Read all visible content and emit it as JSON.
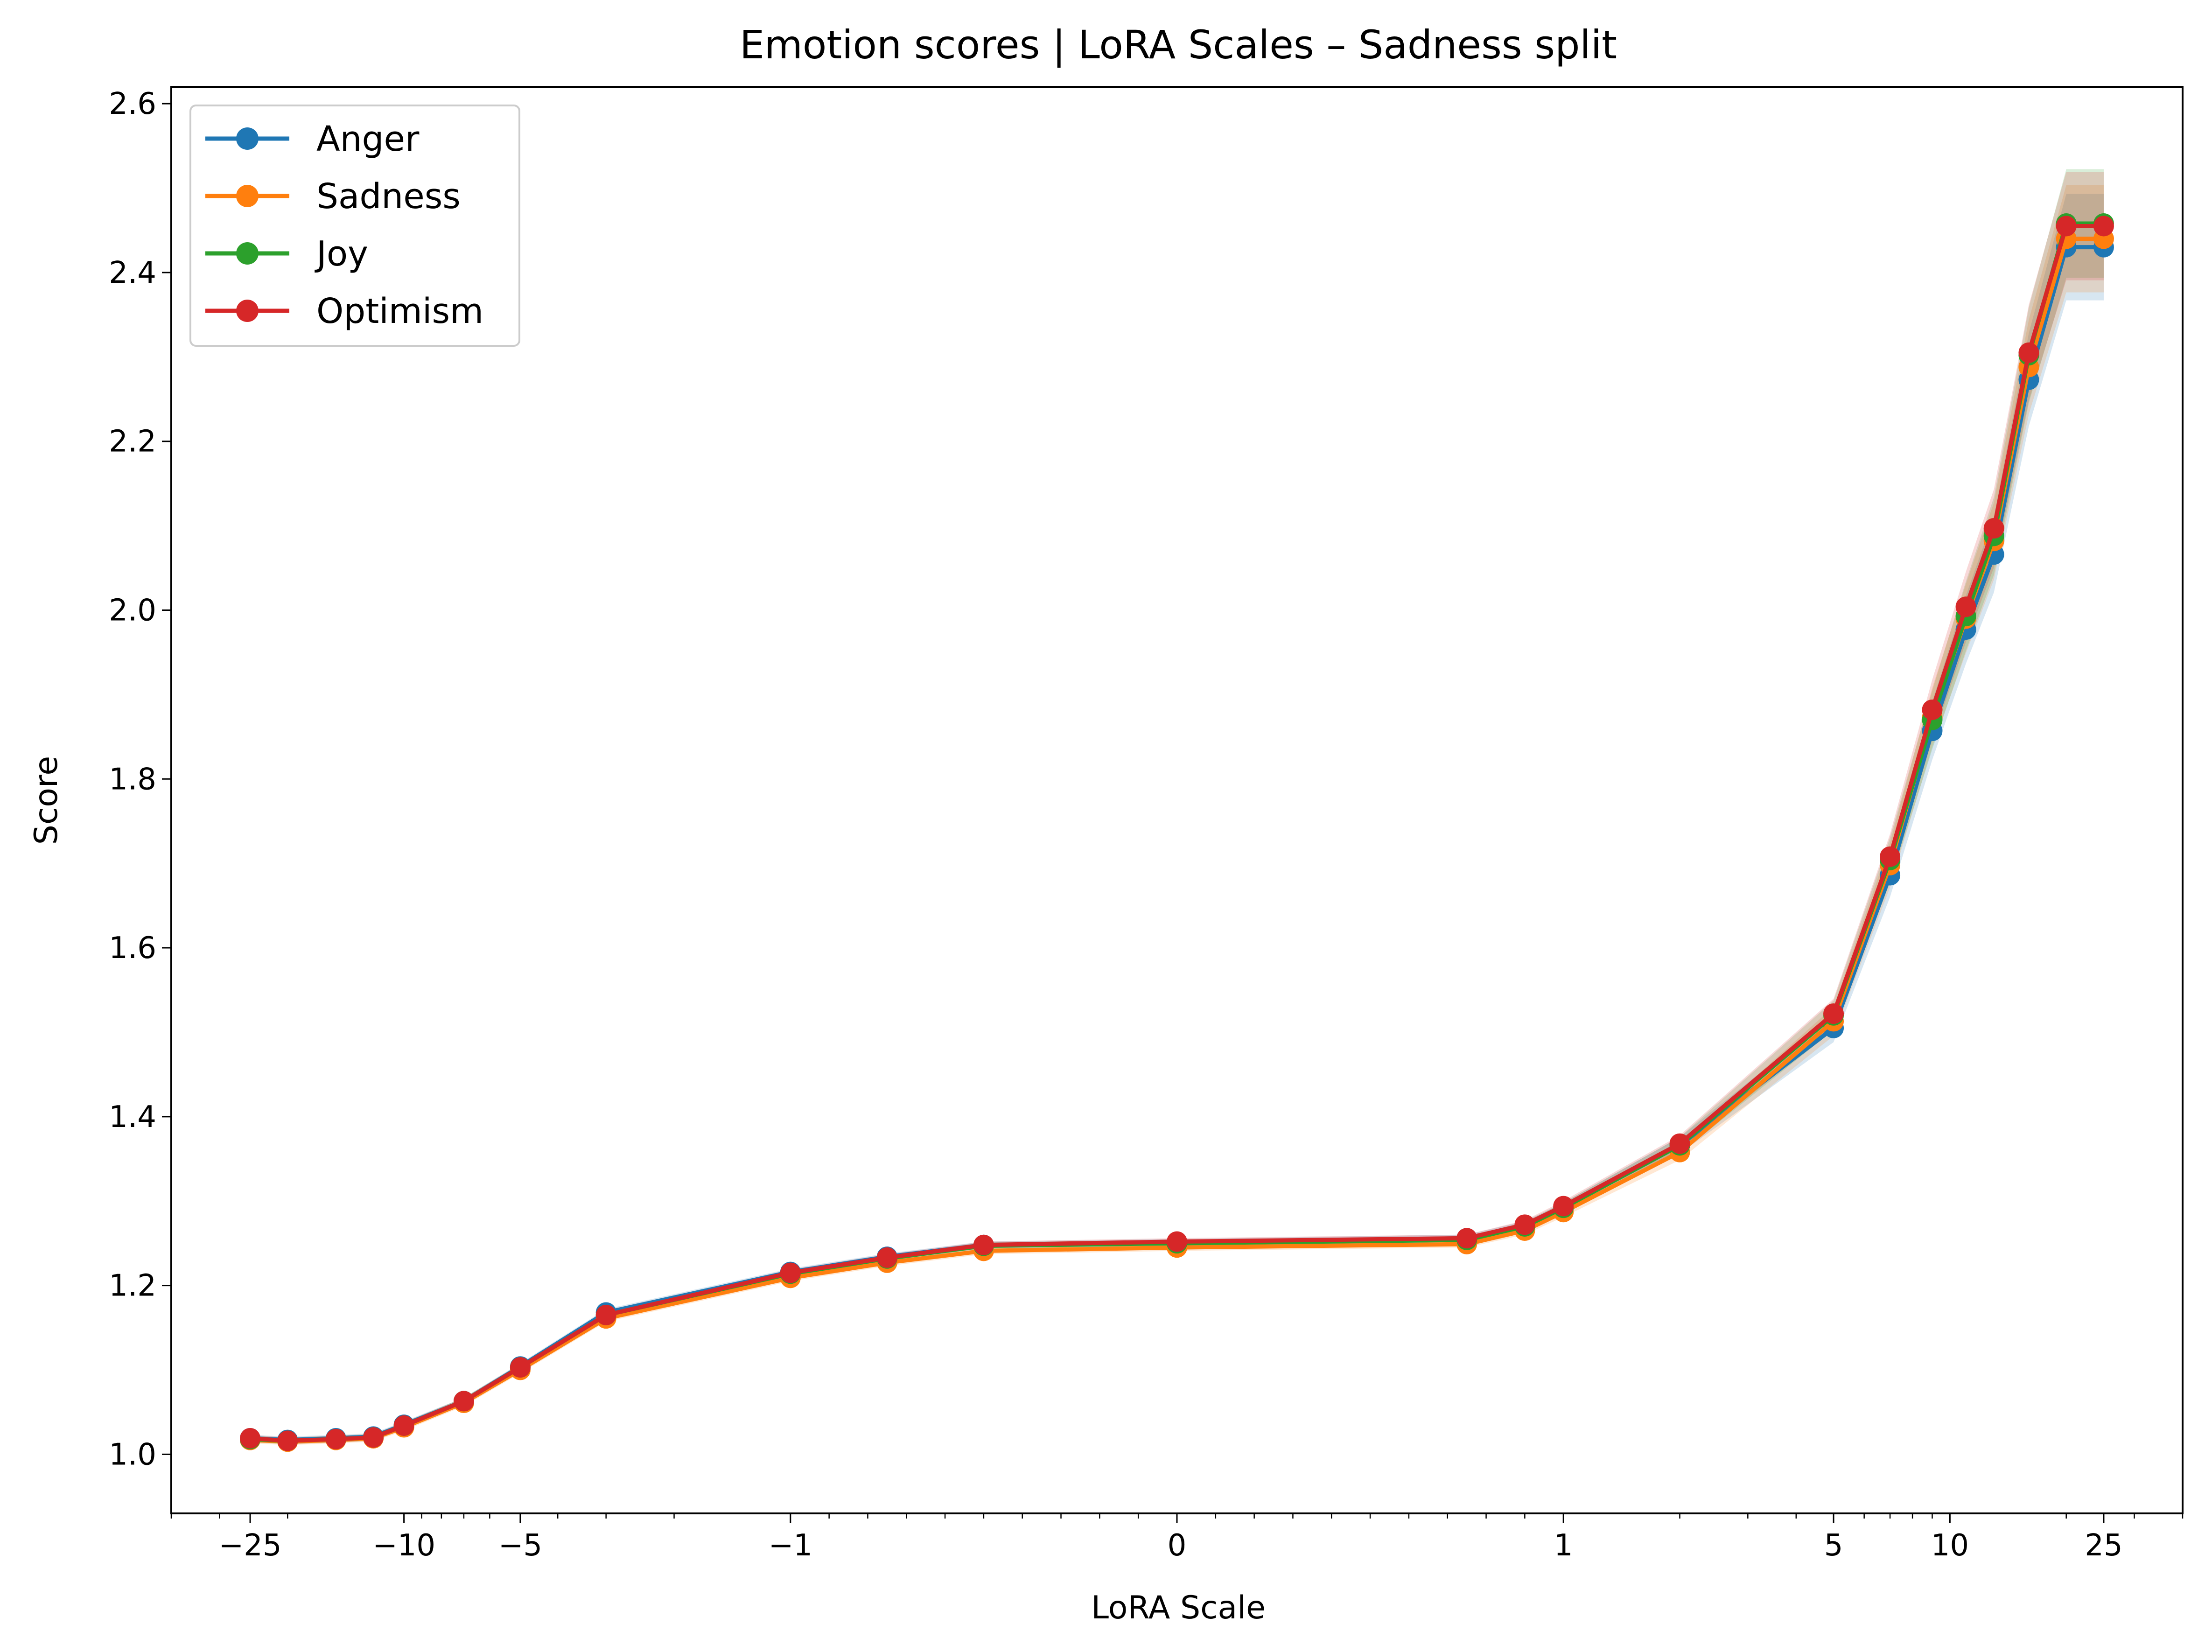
{
  "chart_data": {
    "type": "line",
    "title": "Emotion scores | LoRA Scales – Sadness split",
    "xlabel": "LoRA Scale",
    "ylabel": "Score",
    "xscale": "symlog",
    "linthresh": 1,
    "xlim": [
      -40,
      40
    ],
    "ylim": [
      0.93,
      2.62
    ],
    "x": [
      -25,
      -20,
      -15,
      -12,
      -10,
      -7,
      -5,
      -3,
      -1,
      -0.75,
      -0.5,
      0,
      0.75,
      0.9,
      1,
      2,
      5,
      7,
      9,
      11,
      13,
      16,
      20,
      25
    ],
    "yticks": [
      1.0,
      1.2,
      1.4,
      1.6,
      1.8,
      2.0,
      2.2,
      2.4,
      2.6
    ],
    "ytick_labels": [
      "1.0",
      "1.2",
      "1.4",
      "1.6",
      "1.8",
      "2.0",
      "2.2",
      "2.4",
      "2.6"
    ],
    "xticks": [
      -25,
      -10,
      -5,
      -1,
      0,
      1,
      5,
      10,
      25
    ],
    "xtick_labels": [
      "−25",
      "−10",
      "−5",
      "−1",
      "0",
      "1",
      "5",
      "10",
      "25"
    ],
    "grid": false,
    "legend_position": "upper-left",
    "series": [
      {
        "name": "Anger",
        "color": "#1f77b4",
        "values": [
          1.019,
          1.017,
          1.019,
          1.021,
          1.035,
          1.063,
          1.104,
          1.168,
          1.216,
          1.234,
          1.248,
          1.251,
          1.256,
          1.271,
          1.292,
          1.366,
          1.505,
          1.686,
          1.857,
          1.977,
          2.066,
          2.273,
          2.43,
          2.43
        ]
      },
      {
        "name": "Sadness",
        "color": "#ff7f0e",
        "values": [
          1.017,
          1.015,
          1.017,
          1.019,
          1.032,
          1.061,
          1.1,
          1.161,
          1.209,
          1.227,
          1.241,
          1.245,
          1.249,
          1.265,
          1.287,
          1.358,
          1.513,
          1.698,
          1.873,
          1.99,
          2.082,
          2.288,
          2.44,
          2.44
        ]
      },
      {
        "name": "Joy",
        "color": "#2ca02c",
        "values": [
          1.018,
          1.016,
          1.018,
          1.02,
          1.034,
          1.063,
          1.103,
          1.165,
          1.214,
          1.232,
          1.247,
          1.25,
          1.254,
          1.27,
          1.292,
          1.366,
          1.52,
          1.704,
          1.87,
          1.993,
          2.088,
          2.302,
          2.458,
          2.458
        ]
      },
      {
        "name": "Optimism",
        "color": "#d62728",
        "values": [
          1.019,
          1.016,
          1.018,
          1.02,
          1.034,
          1.063,
          1.103,
          1.165,
          1.215,
          1.233,
          1.248,
          1.252,
          1.256,
          1.272,
          1.294,
          1.368,
          1.522,
          1.708,
          1.882,
          2.004,
          2.097,
          2.305,
          2.455,
          2.455
        ]
      }
    ]
  }
}
